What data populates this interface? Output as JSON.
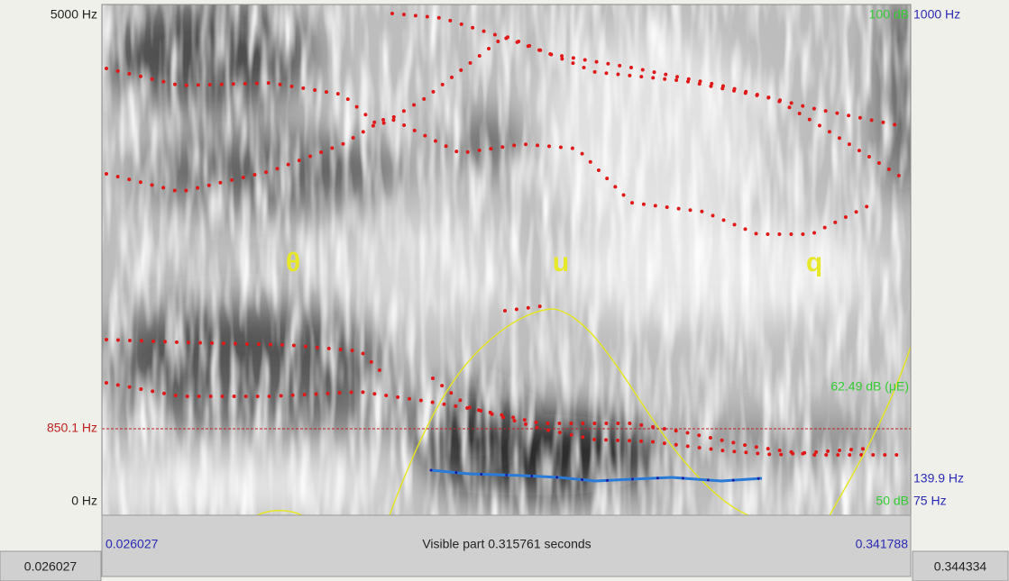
{
  "left_axis": {
    "top": "5000 Hz",
    "cursor": "850.1 Hz",
    "bottom": "0 Hz"
  },
  "right_axis": {
    "intensity_top": "100 dB",
    "pitch_top": "1000 Hz",
    "intensity_value": "62.49 dB (μE)",
    "pitch_value": "139.9 Hz",
    "intensity_bottom": "50 dB",
    "pitch_bottom": "75 Hz"
  },
  "segments": [
    "θ",
    "u",
    "q"
  ],
  "time_bar": {
    "start": "0.026027",
    "visible": "Visible part 0.315761 seconds",
    "end": "0.341788"
  },
  "window": {
    "start": "0.026027",
    "end": "0.344334"
  }
}
